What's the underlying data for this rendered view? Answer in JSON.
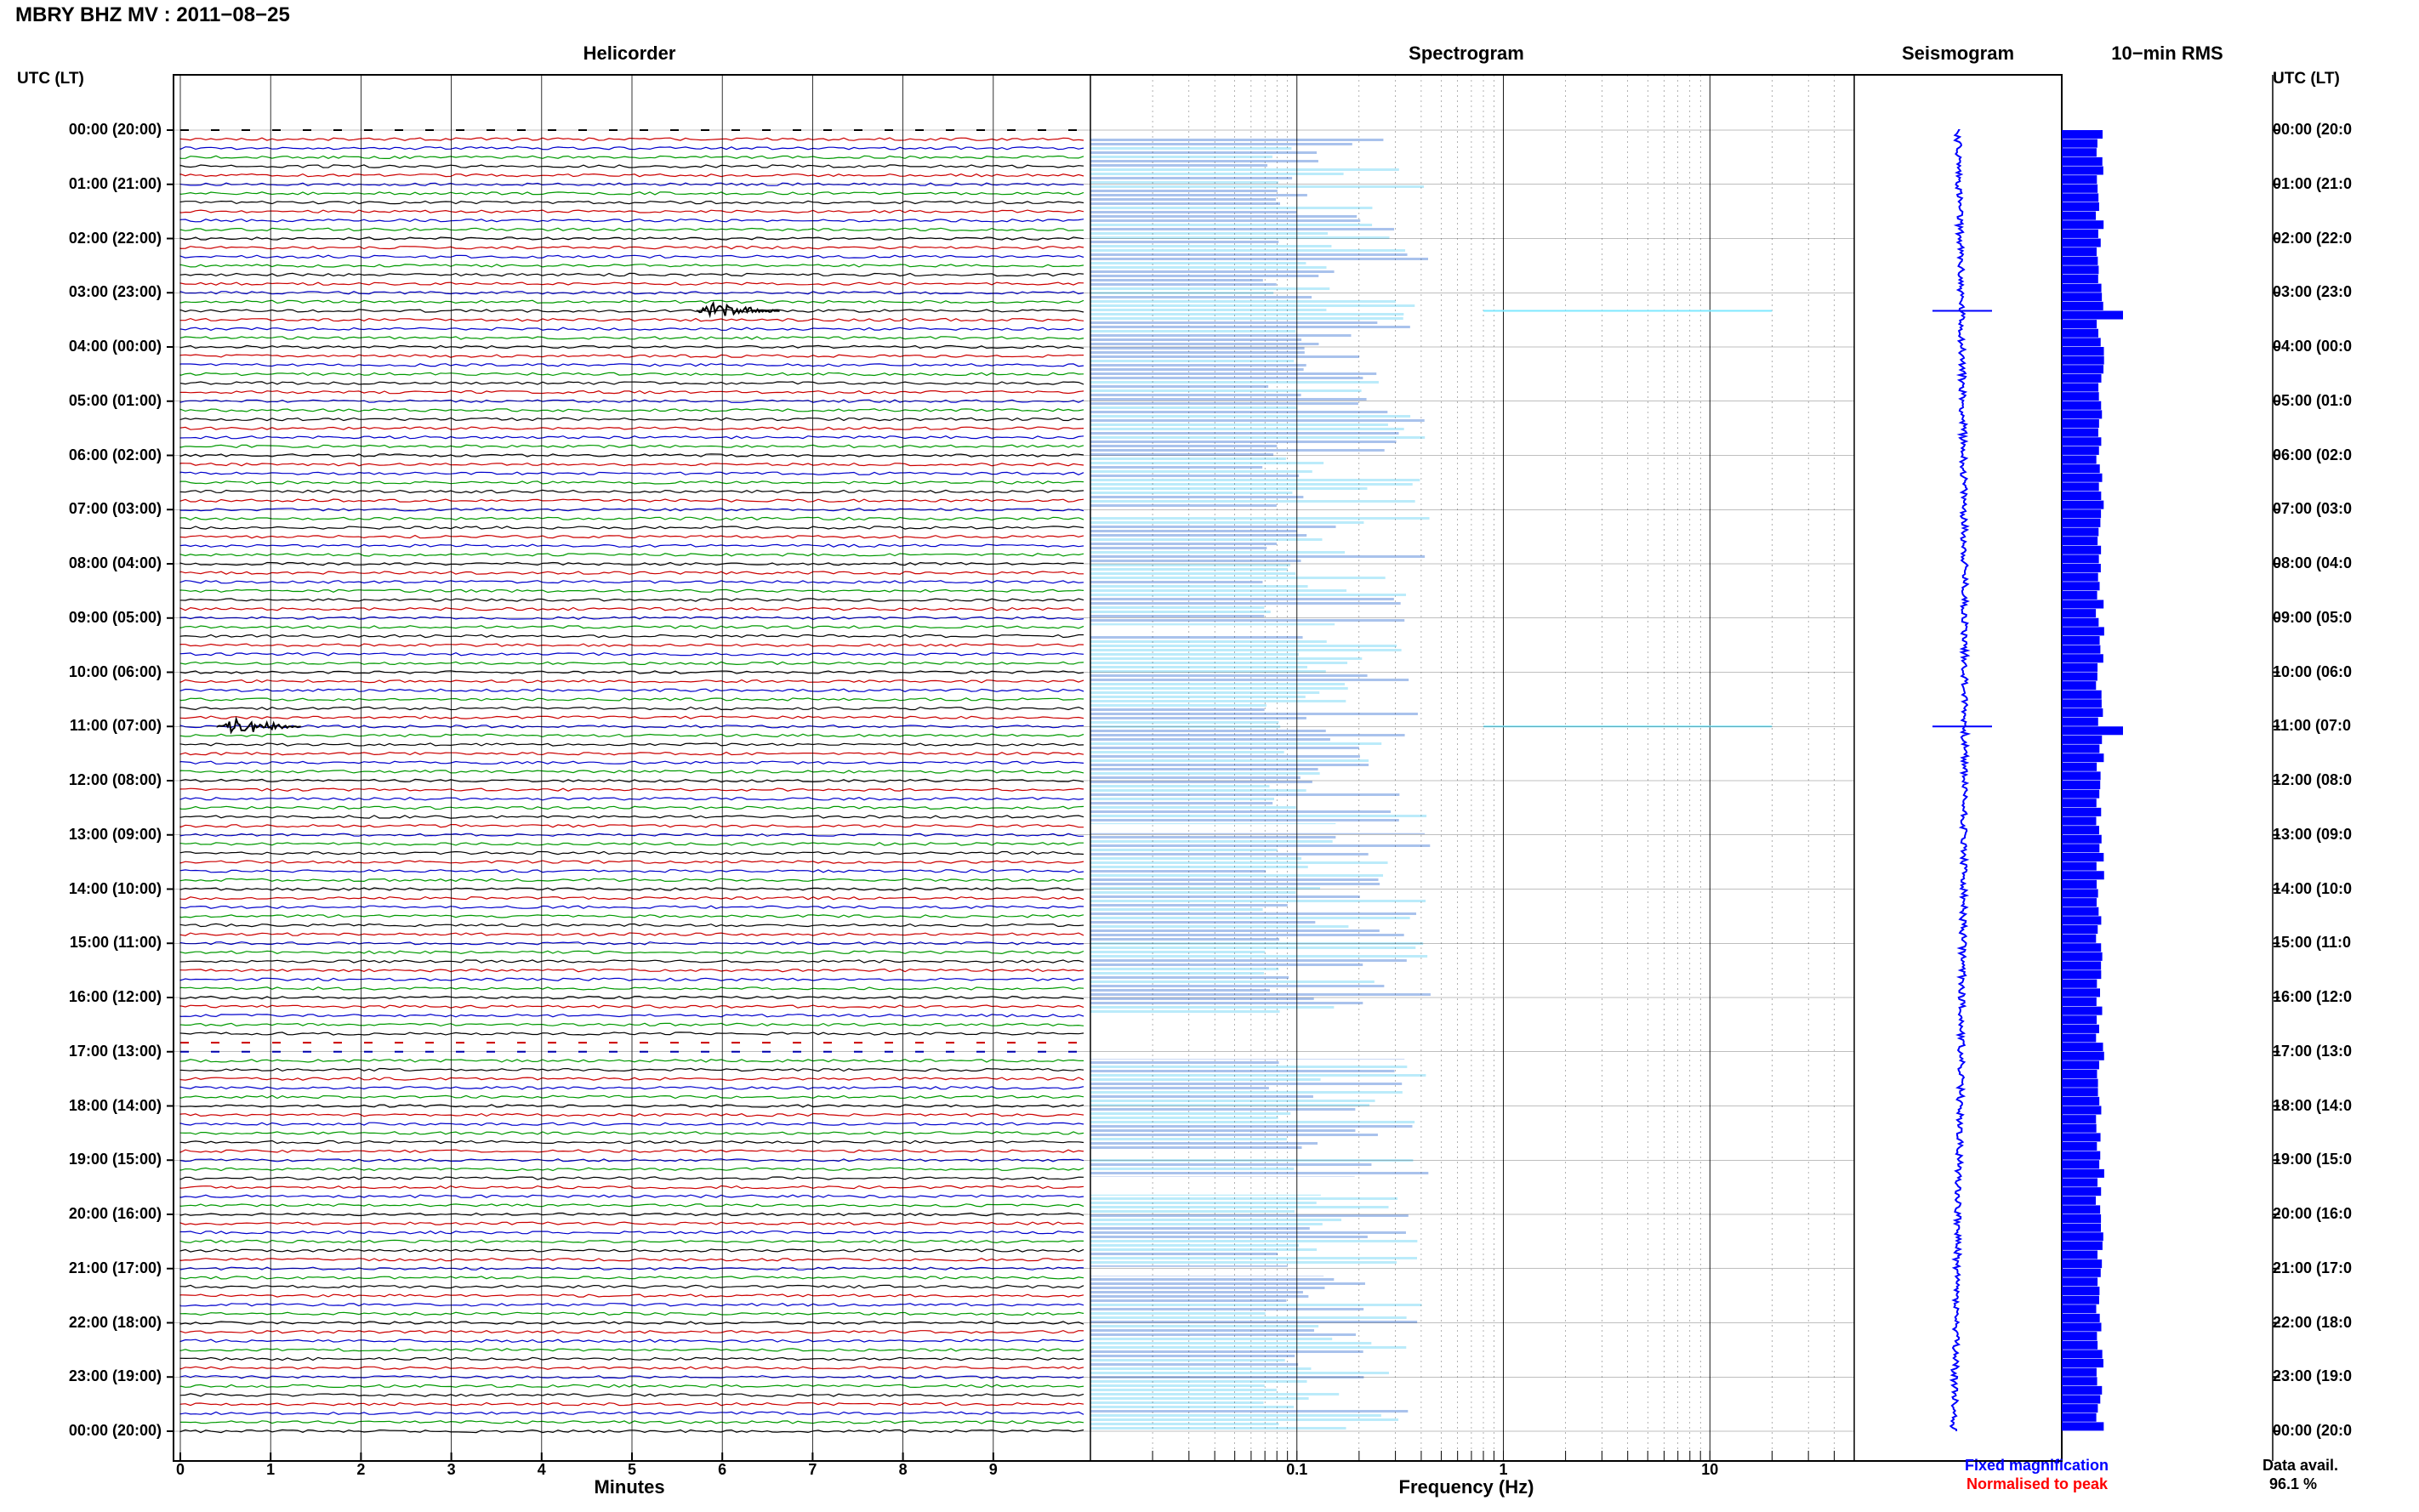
{
  "title": "MBRY BHZ MV : 2011−08−25",
  "panels": {
    "helicorder": "Helicorder",
    "spectrogram": "Spectrogram",
    "seismogram": "Seismogram",
    "rms": "10−min RMS"
  },
  "utc_header_left": "UTC (LT)",
  "utc_header_right": "UTC (LT)",
  "time_labels_left": [
    "00:00 (20:00)",
    "01:00 (21:00)",
    "02:00 (22:00)",
    "03:00 (23:00)",
    "04:00 (00:00)",
    "05:00 (01:00)",
    "06:00 (02:00)",
    "07:00 (03:00)",
    "08:00 (04:00)",
    "09:00 (05:00)",
    "10:00 (06:00)",
    "11:00 (07:00)",
    "12:00 (08:00)",
    "13:00 (09:00)",
    "14:00 (10:00)",
    "15:00 (11:00)",
    "16:00 (12:00)",
    "17:00 (13:00)",
    "18:00 (14:00)",
    "19:00 (15:00)",
    "20:00 (16:00)",
    "21:00 (17:00)",
    "22:00 (18:00)",
    "23:00 (19:00)",
    "00:00 (20:00)"
  ],
  "time_labels_right": [
    "00:00 (20:0",
    "01:00 (21:0",
    "02:00 (22:0",
    "03:00 (23:0",
    "04:00 (00:0",
    "05:00 (01:0",
    "06:00 (02:0",
    "07:00 (03:0",
    "08:00 (04:0",
    "09:00 (05:0",
    "10:00 (06:0",
    "11:00 (07:0",
    "12:00 (08:0",
    "13:00 (09:0",
    "14:00 (10:0",
    "15:00 (11:0",
    "16:00 (12:0",
    "17:00 (13:0",
    "18:00 (14:0",
    "19:00 (15:0",
    "20:00 (16:0",
    "21:00 (17:0",
    "22:00 (18:0",
    "23:00 (19:0",
    "00:00 (20:0"
  ],
  "helicorder_xticks": [
    "0",
    "1",
    "2",
    "3",
    "4",
    "5",
    "6",
    "7",
    "8",
    "9"
  ],
  "helicorder_xlabel": "Minutes",
  "spectrogram_xticks": [
    "0.1",
    "1",
    "10"
  ],
  "spectrogram_xlabel": "Frequency (Hz)",
  "legend": {
    "fixed": "Fixed magnification",
    "normalised": "Normalised to peak",
    "fixed_color": "#0000ff",
    "normalised_color": "#ff0000"
  },
  "data_avail_label": "Data avail.",
  "data_avail_value": "96.1 %",
  "colors": {
    "trace_cycle": [
      "#000000",
      "#cc0000",
      "#0000cc",
      "#009900"
    ],
    "spec_low": "#000099",
    "spec_mid": "#00aaff",
    "spec_high": "#ffff00",
    "rms_bar": "#0000ff"
  },
  "chart_data": [
    {
      "type": "line",
      "name": "Helicorder",
      "title": "Helicorder",
      "xlabel": "Minutes",
      "xlim": [
        0,
        10
      ],
      "row_minutes": 10,
      "rows": 145,
      "time_range_utc": [
        "00:00",
        "00:00"
      ],
      "events": [
        {
          "time_utc": "03:20",
          "minute": 5.9,
          "note": "large burst"
        },
        {
          "time_utc": "11:00",
          "minute": 0.6,
          "note": "large burst"
        }
      ],
      "gaps_utc": [
        "00:00-00:10",
        "16:50-17:10"
      ]
    },
    {
      "type": "heatmap",
      "name": "Spectrogram",
      "title": "Spectrogram",
      "xlabel": "Frequency (Hz)",
      "xscale": "log",
      "xlim": [
        0.01,
        50
      ],
      "peak_band_hz": [
        0.2,
        0.5
      ],
      "gaps_utc": [
        "00:00-00:10",
        "07:00-07:10",
        "09:10-09:20",
        "12:50-13:00",
        "16:20-17:10",
        "18:50-19:00",
        "19:20-19:40",
        "21:00-21:10"
      ]
    },
    {
      "type": "line",
      "name": "Seismogram",
      "title": "Seismogram",
      "spikes_utc": [
        "03:20",
        "11:00"
      ]
    },
    {
      "type": "bar",
      "name": "10-min RMS",
      "title": "10−min RMS",
      "orientation": "horizontal",
      "bin_minutes": 10,
      "spikes_utc": [
        "03:20",
        "11:00"
      ]
    }
  ]
}
